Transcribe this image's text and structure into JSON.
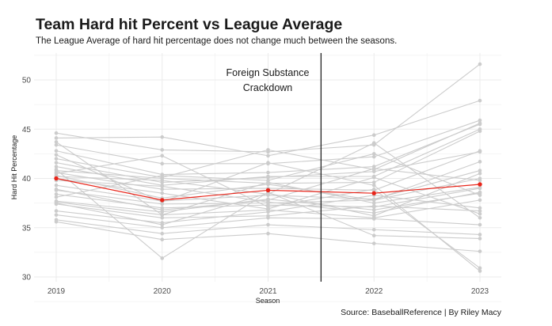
{
  "chart_data": {
    "type": "line",
    "title": "Team Hard hit Percent vs League Average",
    "subtitle": "The League Average of hard hit percentage does not change much between the seasons.",
    "xlabel": "Season",
    "ylabel": "Hard Hit Percentage",
    "categories": [
      "2019",
      "2020",
      "2021",
      "2022",
      "2023"
    ],
    "ylim": [
      30,
      52
    ],
    "yticks": [
      30,
      35,
      40,
      45,
      50
    ],
    "grid": true,
    "caption": "Source: BaseballReference | By Riley Macy",
    "annotation": {
      "text_lines": [
        "Foreign Substance",
        "Crackdown"
      ],
      "vline_x": 2021.5
    },
    "colors": {
      "team": "#cccccc",
      "league": "#e8251a",
      "vline": "#222222",
      "grid": "#ebebeb"
    },
    "league_average": [
      40.0,
      37.8,
      38.8,
      38.5,
      39.4
    ],
    "teams": [
      [
        44.6,
        42.9,
        42.7,
        43.4,
        51.6
      ],
      [
        44.1,
        44.2,
        42.3,
        44.4,
        47.9
      ],
      [
        43.4,
        41.5,
        41.5,
        42.2,
        45.9
      ],
      [
        42.8,
        40.4,
        40.6,
        41.2,
        45.5
      ],
      [
        42.0,
        40.1,
        42.9,
        40.9,
        45.6
      ],
      [
        41.6,
        39.6,
        40.1,
        40.7,
        42.7
      ],
      [
        41.2,
        39.3,
        40.2,
        40.2,
        45.0
      ],
      [
        40.8,
        40.0,
        39.5,
        39.6,
        44.8
      ],
      [
        40.6,
        38.9,
        39.0,
        38.8,
        42.8
      ],
      [
        40.3,
        38.0,
        39.4,
        37.8,
        41.7
      ],
      [
        39.3,
        37.7,
        38.3,
        37.9,
        40.8
      ],
      [
        38.8,
        37.4,
        37.5,
        37.8,
        40.0
      ],
      [
        38.4,
        37.0,
        37.3,
        37.1,
        39.0
      ],
      [
        37.7,
        36.6,
        37.9,
        36.8,
        38.5
      ],
      [
        37.6,
        36.3,
        36.8,
        36.0,
        37.8
      ],
      [
        37.4,
        36.0,
        36.2,
        37.2,
        36.7
      ],
      [
        36.7,
        35.5,
        36.6,
        38.3,
        37.0
      ],
      [
        36.3,
        35.0,
        36.0,
        35.9,
        35.3
      ],
      [
        35.8,
        34.4,
        35.3,
        34.8,
        34.3
      ],
      [
        35.6,
        33.8,
        34.4,
        33.4,
        32.6
      ],
      [
        40.9,
        31.9,
        38.6,
        34.2,
        33.9
      ],
      [
        40.5,
        42.3,
        37.1,
        38.9,
        30.9
      ],
      [
        42.4,
        37.6,
        41.6,
        39.3,
        30.6
      ],
      [
        39.8,
        39.2,
        37.6,
        36.5,
        38.6
      ],
      [
        38.1,
        40.3,
        39.8,
        42.5,
        38.3
      ],
      [
        40.0,
        38.5,
        36.9,
        40.1,
        36.4
      ],
      [
        38.9,
        36.8,
        37.8,
        41.0,
        39.8
      ],
      [
        40.2,
        39.8,
        38.4,
        43.6,
        36.0
      ],
      [
        43.7,
        36.3,
        39.6,
        37.5,
        39.1
      ],
      [
        37.5,
        35.3,
        38.5,
        36.2,
        40.5
      ]
    ]
  }
}
